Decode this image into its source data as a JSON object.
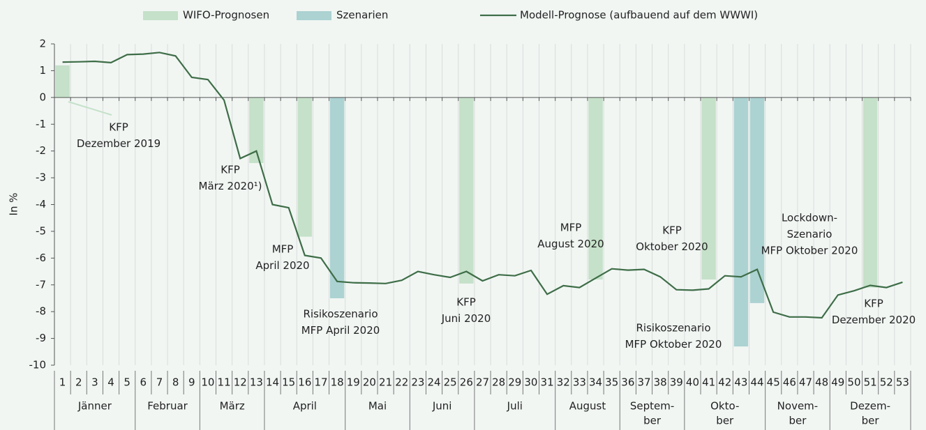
{
  "chart_data": {
    "type": "bar-line",
    "y_label": "In %",
    "categories": [
      "1",
      "2",
      "3",
      "4",
      "5",
      "6",
      "7",
      "8",
      "9",
      "10",
      "11",
      "12",
      "13",
      "14",
      "15",
      "16",
      "17",
      "18",
      "19",
      "20",
      "21",
      "22",
      "23",
      "24",
      "25",
      "26",
      "27",
      "28",
      "29",
      "30",
      "31",
      "32",
      "33",
      "34",
      "35",
      "36",
      "37",
      "38",
      "39",
      "40",
      "41",
      "42",
      "43",
      "44",
      "45",
      "46",
      "47",
      "48",
      "49",
      "50",
      "51",
      "52",
      "53"
    ],
    "months": [
      [
        "Jänner"
      ],
      [
        "Februar"
      ],
      [
        "März"
      ],
      [
        "April"
      ],
      [
        "Mai"
      ],
      [
        "Juni"
      ],
      [
        "Juli"
      ],
      [
        "August"
      ],
      [
        "Septem-",
        "ber"
      ],
      [
        "Okto-",
        "ber"
      ],
      [
        "Novem-",
        "ber"
      ],
      [
        "Dezem-",
        "ber"
      ]
    ],
    "series": [
      {
        "name": "WIFO-Prognosen",
        "kind": "bar",
        "color": "#c5e1c9",
        "values": [
          1.2,
          null,
          null,
          null,
          null,
          null,
          null,
          null,
          null,
          null,
          null,
          null,
          -2.45,
          null,
          null,
          -5.2,
          null,
          null,
          null,
          null,
          null,
          null,
          null,
          null,
          null,
          -6.95,
          null,
          null,
          null,
          null,
          null,
          null,
          null,
          -6.8,
          null,
          null,
          null,
          null,
          null,
          null,
          -6.8,
          null,
          null,
          null,
          null,
          null,
          null,
          null,
          null,
          null,
          -7.1,
          null,
          null
        ]
      },
      {
        "name": "Szenarien",
        "kind": "bar",
        "color": "#acd2d2",
        "values": [
          null,
          null,
          null,
          null,
          null,
          null,
          null,
          null,
          null,
          null,
          null,
          null,
          null,
          null,
          null,
          null,
          null,
          -7.5,
          null,
          null,
          null,
          null,
          null,
          null,
          null,
          null,
          null,
          null,
          null,
          null,
          null,
          null,
          null,
          null,
          null,
          null,
          null,
          null,
          null,
          null,
          null,
          null,
          -9.3,
          -7.68,
          null,
          null,
          null,
          null,
          null,
          null,
          null,
          null,
          null
        ]
      },
      {
        "name": "Modell-Prognose (aufbauend auf dem WWWI)",
        "kind": "line",
        "color": "#3e6d47",
        "values": [
          1.32,
          1.33,
          1.35,
          1.3,
          1.6,
          1.62,
          1.68,
          1.55,
          0.75,
          0.67,
          -0.1,
          -2.28,
          -2.0,
          -4.0,
          -4.12,
          -5.9,
          -6.0,
          -6.87,
          -6.92,
          -6.93,
          -6.95,
          -6.83,
          -6.5,
          -6.62,
          -6.72,
          -6.5,
          -6.85,
          -6.62,
          -6.66,
          -6.46,
          -7.35,
          -7.03,
          -7.1,
          -6.75,
          -6.4,
          -6.45,
          -6.42,
          -6.7,
          -7.18,
          -7.2,
          -7.15,
          -6.66,
          -6.7,
          -6.42,
          -8.02,
          -8.2,
          -8.2,
          -8.23,
          -7.38,
          -7.22,
          -7.02,
          -7.1,
          -6.9
        ]
      }
    ],
    "annotations": [
      [
        "KFP",
        "Dezember 2019"
      ],
      [
        "KFP",
        "März 2020¹)"
      ],
      [
        "MFP",
        "April 2020"
      ],
      [
        "Risikoszenario",
        "MFP April 2020"
      ],
      [
        "KFP",
        "Juni 2020"
      ],
      [
        "MFP",
        "August 2020"
      ],
      [
        "KFP",
        "Oktober 2020"
      ],
      [
        "Risikoszenario",
        "MFP Oktober 2020"
      ],
      [
        "Lockdown-",
        "Szenario",
        "MFP Oktober 2020"
      ],
      [
        "KFP",
        "Dezember 2020"
      ]
    ],
    "ylim": [
      -10,
      2
    ],
    "yticks": [
      -10,
      -9,
      -8,
      -7,
      -6,
      -5,
      -4,
      -3,
      -2,
      -1,
      0,
      1,
      2
    ],
    "grid": "x",
    "legend": "top"
  }
}
